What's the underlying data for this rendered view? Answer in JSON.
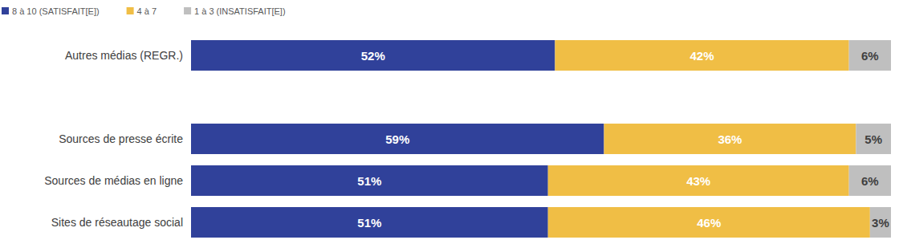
{
  "chart_data": {
    "type": "bar",
    "orientation": "horizontal",
    "stacked": true,
    "data_labels": true,
    "tick_labels": false,
    "legend": "top-left",
    "categories": [
      "Autres médias (REGR.)",
      "Sources de presse écrite",
      "Sources de médias en ligne",
      "Sites de réseautage social"
    ],
    "xlim": [
      0,
      100
    ],
    "series": [
      {
        "name": "8 à 10 (SATISFAIT[E])",
        "color": "#30419a",
        "values": [
          52,
          59,
          51,
          51
        ],
        "value_labels": [
          "52%",
          "59%",
          "51%",
          "51%"
        ]
      },
      {
        "name": "4 à 7",
        "color": "#f0be45",
        "values": [
          42,
          36,
          43,
          46
        ],
        "value_labels": [
          "42%",
          "36%",
          "43%",
          "46%"
        ]
      },
      {
        "name": "1 à 3 (INSATISFAIT[E])",
        "color": "#bfbfbf",
        "values": [
          6,
          5,
          6,
          3
        ],
        "value_labels": [
          "6%",
          "5%",
          "6%",
          "3%"
        ]
      }
    ]
  }
}
